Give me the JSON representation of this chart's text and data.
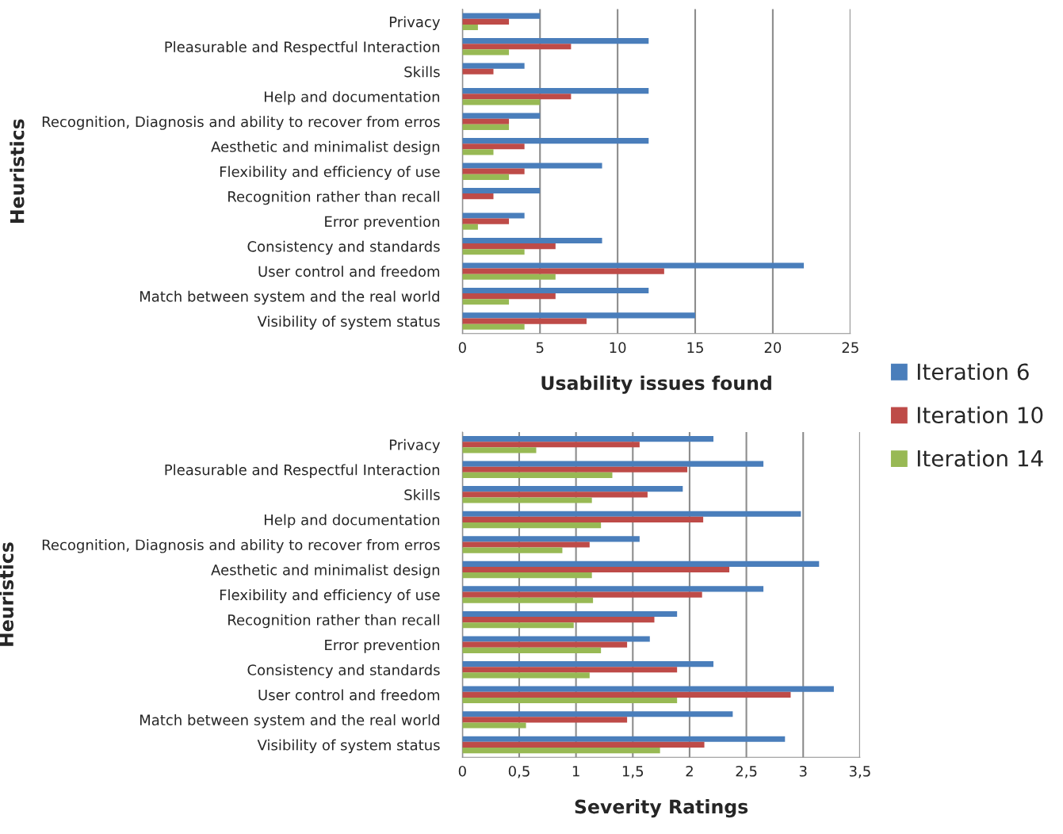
{
  "chart_data": [
    {
      "type": "bar",
      "orientation": "horizontal",
      "xlabel": "Usability issues found",
      "ylabel": "Heuristics",
      "categories": [
        "Privacy",
        "Pleasurable and Respectful Interaction",
        "Skills",
        "Help and documentation",
        "Recognition, Diagnosis and ability to recover from erros",
        "Aesthetic and minimalist design",
        "Flexibility and efficiency of use",
        "Recognition rather than recall",
        "Error prevention",
        "Consistency and standards",
        "User control and freedom",
        "Match between system and the real world",
        "Visibility of system status"
      ],
      "series": [
        {
          "name": "Iteration 6",
          "color": "#4a7ebb",
          "values": [
            5,
            12,
            4,
            12,
            5,
            12,
            9,
            5,
            4,
            9,
            22,
            12,
            15
          ]
        },
        {
          "name": "Iteration 10",
          "color": "#be4b48",
          "values": [
            3,
            7,
            2,
            7,
            3,
            4,
            4,
            2,
            3,
            6,
            13,
            6,
            8
          ]
        },
        {
          "name": "Iteration 14",
          "color": "#98b954",
          "values": [
            1,
            3,
            0,
            5,
            3,
            2,
            3,
            0,
            1,
            4,
            6,
            3,
            4
          ]
        }
      ],
      "xlim": [
        0,
        25
      ],
      "xticks": [
        0,
        5,
        10,
        15,
        20,
        25
      ],
      "grid": "x",
      "legend": "right"
    },
    {
      "type": "bar",
      "orientation": "horizontal",
      "xlabel": "Severity Ratings",
      "ylabel": "Heuristics",
      "categories": [
        "Privacy",
        "Pleasurable and Respectful Interaction",
        "Skills",
        "Help and documentation",
        "Recognition, Diagnosis and ability to recover from erros",
        "Aesthetic and minimalist design",
        "Flexibility and efficiency of use",
        "Recognition rather than recall",
        "Error prevention",
        "Consistency and standards",
        "User control and freedom",
        "Match between system and the real world",
        "Visibility of system status"
      ],
      "series": [
        {
          "color": "#4a7ebb",
          "values": [
            2.21,
            2.65,
            1.94,
            2.98,
            1.56,
            3.14,
            2.65,
            1.89,
            1.65,
            2.21,
            3.27,
            2.38,
            2.84
          ]
        },
        {
          "color": "#be4b48",
          "values": [
            1.56,
            1.98,
            1.63,
            2.12,
            1.12,
            2.35,
            2.11,
            1.69,
            1.45,
            1.89,
            2.89,
            1.45,
            2.13
          ]
        },
        {
          "color": "#98b954",
          "values": [
            0.65,
            1.32,
            1.14,
            1.22,
            0.88,
            1.14,
            1.15,
            0.98,
            1.22,
            1.12,
            1.89,
            0.56,
            1.74
          ]
        }
      ],
      "xlim": [
        0,
        3.5
      ],
      "xticks": [
        0,
        {
          "value": 0.5,
          "label": "0,5"
        },
        1,
        {
          "value": 1.5,
          "label": "1,5"
        },
        2,
        {
          "value": 2.5,
          "label": "2,5"
        },
        3,
        {
          "value": 3.5,
          "label": "3,5"
        }
      ],
      "grid": "x"
    }
  ]
}
